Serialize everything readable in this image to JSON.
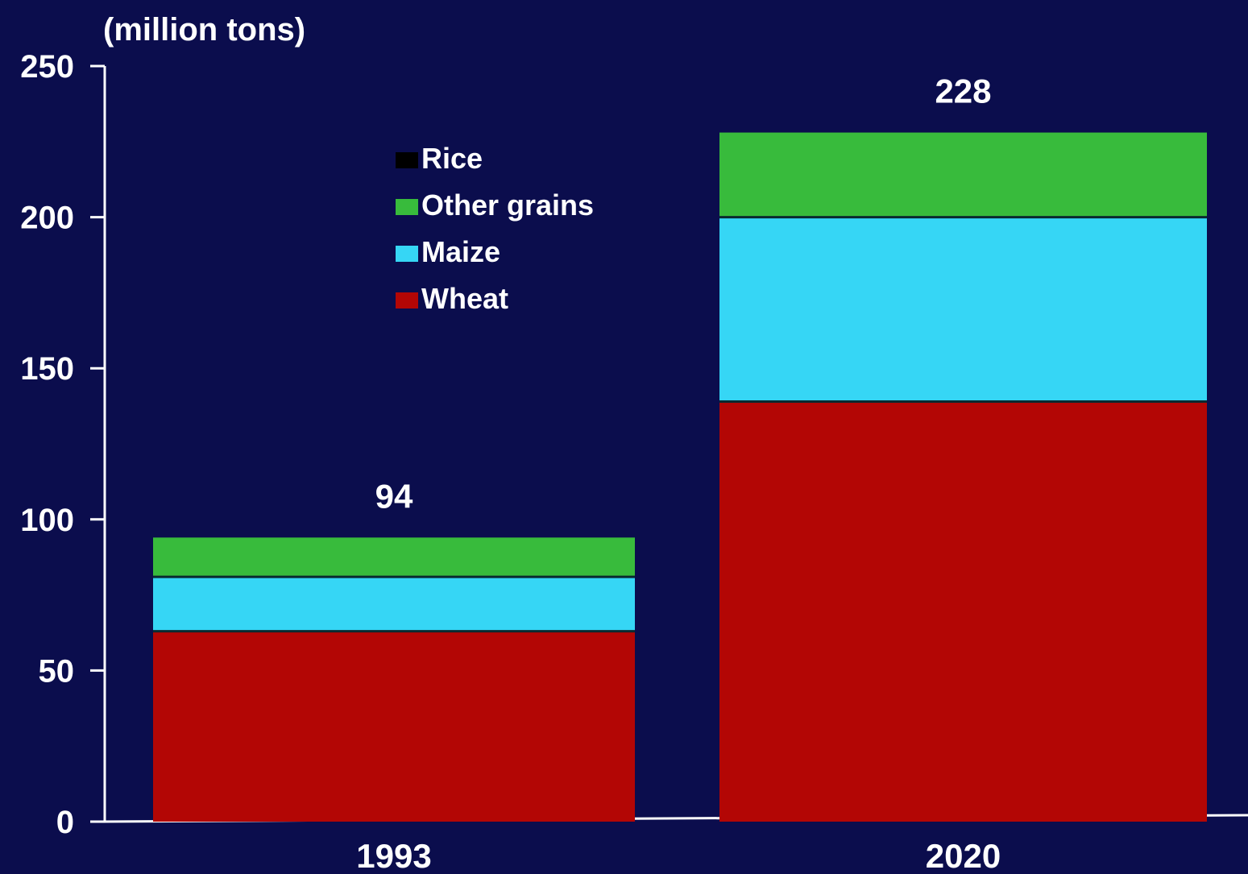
{
  "chart_data": {
    "type": "bar",
    "stacked": true,
    "unit_label": "(million tons)",
    "categories": [
      "1993",
      "2020"
    ],
    "totals": [
      "94",
      "228"
    ],
    "series": [
      {
        "name": "Wheat",
        "color": "#b30605",
        "values": [
          63,
          139
        ]
      },
      {
        "name": "Maize",
        "color": "#36d6f5",
        "values": [
          18,
          61
        ]
      },
      {
        "name": "Other grains",
        "color": "#38bb3c",
        "values": [
          13,
          28
        ]
      },
      {
        "name": "Rice",
        "color": "#0b0d4d",
        "values": [
          0,
          0
        ]
      }
    ],
    "legend_order": [
      "Rice",
      "Other grains",
      "Maize",
      "Wheat"
    ],
    "legend_position": "top-center",
    "ylim": [
      0,
      250
    ],
    "yticks": [
      "0",
      "50",
      "100",
      "150",
      "200",
      "250"
    ],
    "xlabel": "",
    "ylabel": "",
    "grid": false
  }
}
